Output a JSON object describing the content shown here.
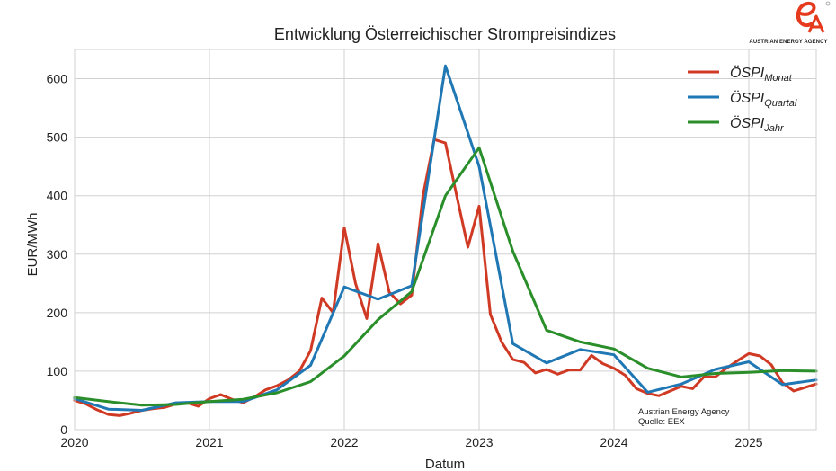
{
  "logo": {
    "text": "AUSTRIAN ENERGY AGENCY",
    "accent": "#e63a1e"
  },
  "source_note": {
    "line1": "Austrian Energy Agency",
    "line2": "Quelle: EEX"
  },
  "chart_data": {
    "type": "line",
    "title": "Entwicklung Österreichischer Strompreisindizes",
    "xlabel": "Datum",
    "ylabel": "EUR/MWh",
    "xlim": [
      2020.0,
      2025.5
    ],
    "ylim": [
      0,
      650
    ],
    "xticks": [
      2020,
      2021,
      2022,
      2023,
      2024,
      2025
    ],
    "xtick_labels": [
      "2020",
      "2021",
      "2022",
      "2023",
      "2024",
      "2025"
    ],
    "yticks": [
      0,
      100,
      200,
      300,
      400,
      500,
      600
    ],
    "grid": true,
    "legend_position": "top-right",
    "series": [
      {
        "name": "ÖSPI",
        "name_sub": "Monat",
        "color": "#d03a24",
        "x": [
          2020.0,
          2020.083,
          2020.167,
          2020.25,
          2020.333,
          2020.417,
          2020.5,
          2020.583,
          2020.667,
          2020.75,
          2020.833,
          2020.917,
          2021.0,
          2021.083,
          2021.167,
          2021.25,
          2021.333,
          2021.417,
          2021.5,
          2021.583,
          2021.667,
          2021.75,
          2021.833,
          2021.917,
          2022.0,
          2022.083,
          2022.167,
          2022.25,
          2022.333,
          2022.417,
          2022.5,
          2022.583,
          2022.667,
          2022.75,
          2022.833,
          2022.917,
          2023.0,
          2023.083,
          2023.167,
          2023.25,
          2023.333,
          2023.417,
          2023.5,
          2023.583,
          2023.667,
          2023.75,
          2023.833,
          2023.917,
          2024.0,
          2024.083,
          2024.167,
          2024.25,
          2024.333,
          2024.417,
          2024.5,
          2024.583,
          2024.667,
          2024.75,
          2024.833,
          2024.917,
          2025.0,
          2025.083,
          2025.167,
          2025.25,
          2025.333,
          2025.417,
          2025.5
        ],
        "y": [
          50,
          44,
          34,
          26,
          24,
          28,
          33,
          36,
          38,
          44,
          46,
          40,
          53,
          60,
          52,
          46,
          56,
          68,
          75,
          85,
          100,
          135,
          225,
          200,
          345,
          250,
          190,
          318,
          235,
          215,
          230,
          400,
          496,
          490,
          400,
          312,
          382,
          197,
          150,
          120,
          115,
          97,
          103,
          95,
          102,
          102,
          127,
          113,
          105,
          93,
          70,
          62,
          58,
          66,
          74,
          70,
          90,
          90,
          105,
          118,
          130,
          126,
          111,
          80,
          66,
          72,
          78
        ]
      },
      {
        "name": "ÖSPI",
        "name_sub": "Quartal",
        "color": "#1f77b4",
        "x": [
          2020.0,
          2020.25,
          2020.5,
          2020.75,
          2021.0,
          2021.25,
          2021.5,
          2021.75,
          2022.0,
          2022.25,
          2022.5,
          2022.75,
          2023.0,
          2023.25,
          2023.5,
          2023.75,
          2024.0,
          2024.25,
          2024.5,
          2024.75,
          2025.0,
          2025.25,
          2025.5
        ],
        "y": [
          53,
          35,
          33,
          46,
          48,
          48,
          68,
          110,
          244,
          223,
          246,
          622,
          450,
          147,
          114,
          137,
          128,
          64,
          78,
          103,
          116,
          77,
          85
        ]
      },
      {
        "name": "ÖSPI",
        "name_sub": "Jahr",
        "color": "#2a8f2a",
        "x": [
          2020.0,
          2020.25,
          2020.5,
          2020.75,
          2021.0,
          2021.25,
          2021.5,
          2021.75,
          2022.0,
          2022.25,
          2022.5,
          2022.75,
          2023.0,
          2023.25,
          2023.5,
          2023.75,
          2024.0,
          2024.25,
          2024.5,
          2024.75,
          2025.0,
          2025.25,
          2025.5
        ],
        "y": [
          55,
          48,
          42,
          43,
          48,
          52,
          63,
          82,
          126,
          188,
          236,
          400,
          482,
          305,
          170,
          150,
          138,
          105,
          90,
          96,
          98,
          101,
          100
        ]
      }
    ]
  }
}
